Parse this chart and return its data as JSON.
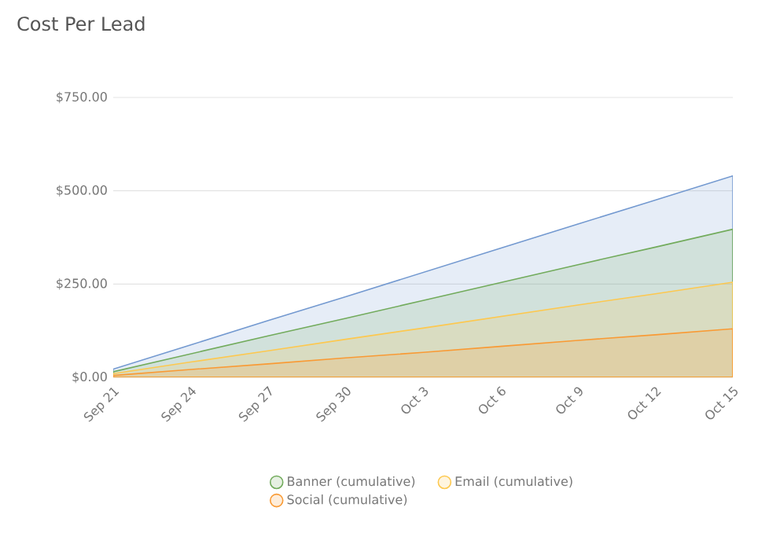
{
  "chart_data": {
    "type": "area",
    "title": "Cost Per Lead",
    "categories": [
      "Sep 21",
      "Sep 24",
      "Sep 27",
      "Sep 30",
      "Oct 3",
      "Oct 6",
      "Oct 9",
      "Oct 12",
      "Oct 15"
    ],
    "series": [
      {
        "color": "#7399d0",
        "values": [
          22,
          87,
          152,
          216,
          281,
          346,
          411,
          475,
          540
        ]
      },
      {
        "name": "Banner (cumulative)",
        "color": "#72ab5c",
        "values": [
          15,
          63,
          111,
          158,
          206,
          254,
          302,
          349,
          397
        ]
      },
      {
        "name": "Email (cumulative)",
        "color": "#fdc84f",
        "values": [
          10,
          41,
          71,
          102,
          132,
          163,
          194,
          224,
          255
        ]
      },
      {
        "name": "Social (cumulative)",
        "color": "#f99a34",
        "values": [
          5,
          21,
          36,
          52,
          67,
          83,
          99,
          114,
          130
        ]
      }
    ],
    "ylim": [
      0,
      750
    ],
    "yticks": [
      {
        "value": 0,
        "label": "$0.00"
      },
      {
        "value": 250,
        "label": "$250.00"
      },
      {
        "value": 500,
        "label": "$500.00"
      },
      {
        "value": 750,
        "label": "$750.00"
      }
    ],
    "grid": "y",
    "legend": "bottom"
  }
}
